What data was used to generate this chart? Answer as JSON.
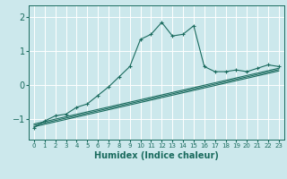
{
  "xlabel": "Humidex (Indice chaleur)",
  "bg_color": "#cce8ec",
  "line_color": "#1a6b5e",
  "grid_color": "#ffffff",
  "x_ticks": [
    0,
    1,
    2,
    3,
    4,
    5,
    6,
    7,
    8,
    9,
    10,
    11,
    12,
    13,
    14,
    15,
    16,
    17,
    18,
    19,
    20,
    21,
    22,
    23
  ],
  "ylim": [
    -1.6,
    2.35
  ],
  "xlim": [
    -0.5,
    23.5
  ],
  "curve1_x": [
    0,
    1,
    2,
    3,
    4,
    5,
    6,
    7,
    8,
    9,
    10,
    11,
    12,
    13,
    14,
    15,
    16,
    17,
    18,
    19,
    20,
    21,
    22,
    23
  ],
  "curve1_y": [
    -1.25,
    -1.05,
    -0.9,
    -0.85,
    -0.65,
    -0.55,
    -0.3,
    -0.05,
    0.25,
    0.55,
    1.35,
    1.5,
    1.85,
    1.45,
    1.5,
    1.75,
    0.55,
    0.4,
    0.4,
    0.45,
    0.4,
    0.5,
    0.6,
    0.55
  ],
  "line2_x": [
    0,
    23
  ],
  "line2_y": [
    -1.22,
    0.42
  ],
  "line3_x": [
    0,
    23
  ],
  "line3_y": [
    -1.18,
    0.46
  ],
  "line4_x": [
    0,
    23
  ],
  "line4_y": [
    -1.14,
    0.5
  ]
}
